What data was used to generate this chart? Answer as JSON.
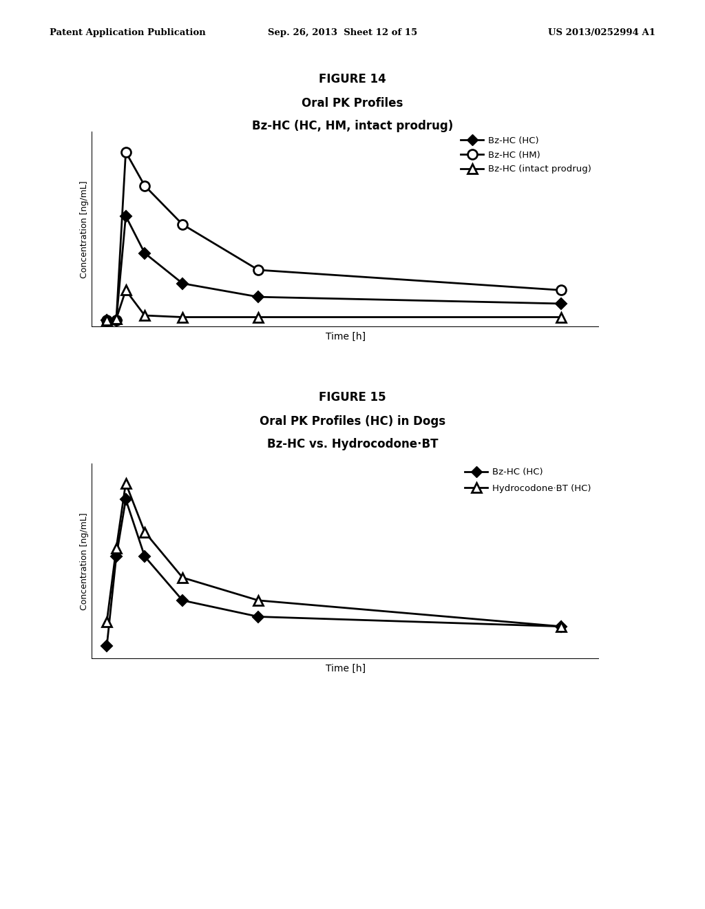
{
  "header_left": "Patent Application Publication",
  "header_mid": "Sep. 26, 2013  Sheet 12 of 15",
  "header_right": "US 2013/0252994 A1",
  "fig14_label": "FIGURE 14",
  "fig14_title_line1": "Oral PK Profiles",
  "fig14_title_line2": "Bz-HC (HC, HM, intact prodrug)",
  "fig14_x_hc": [
    0,
    0.5,
    1,
    2,
    4,
    8,
    24
  ],
  "fig14_y_hc": [
    0,
    0,
    62,
    40,
    22,
    14,
    10
  ],
  "fig14_x_hm": [
    0,
    0.5,
    1,
    2,
    4,
    8,
    24
  ],
  "fig14_y_hm": [
    0,
    0,
    100,
    80,
    57,
    30,
    18
  ],
  "fig14_x_prodrug": [
    0,
    0.5,
    1,
    2,
    4,
    8,
    24
  ],
  "fig14_y_prodrug": [
    0,
    1,
    18,
    3,
    2,
    2,
    2
  ],
  "fig14_xlabel": "Time [h]",
  "fig14_ylabel": "Concentration [ng/mL]",
  "fig14_legend": [
    "Bz-HC (HC)",
    "Bz-HC (HM)",
    "Bz-HC (intact prodrug)"
  ],
  "fig15_label": "FIGURE 15",
  "fig15_title_line1": "Oral PK Profiles (HC) in Dogs",
  "fig15_title_line2": "Bz-HC vs. Hydrocodone·BT",
  "fig15_x_hc": [
    0,
    0.5,
    1,
    2,
    4,
    8,
    24
  ],
  "fig15_y_hc": [
    0,
    55,
    90,
    55,
    28,
    18,
    12
  ],
  "fig15_x_hydro": [
    0,
    0.5,
    1,
    2,
    4,
    8,
    24
  ],
  "fig15_y_hydro": [
    15,
    60,
    100,
    70,
    42,
    28,
    12
  ],
  "fig15_xlabel": "Time [h]",
  "fig15_ylabel": "Concentration [ng/mL]",
  "fig15_legend": [
    "Bz-HC (HC)",
    "Hydrocodone·BT (HC)"
  ],
  "line_color": "#000000",
  "bg_color": "#ffffff"
}
